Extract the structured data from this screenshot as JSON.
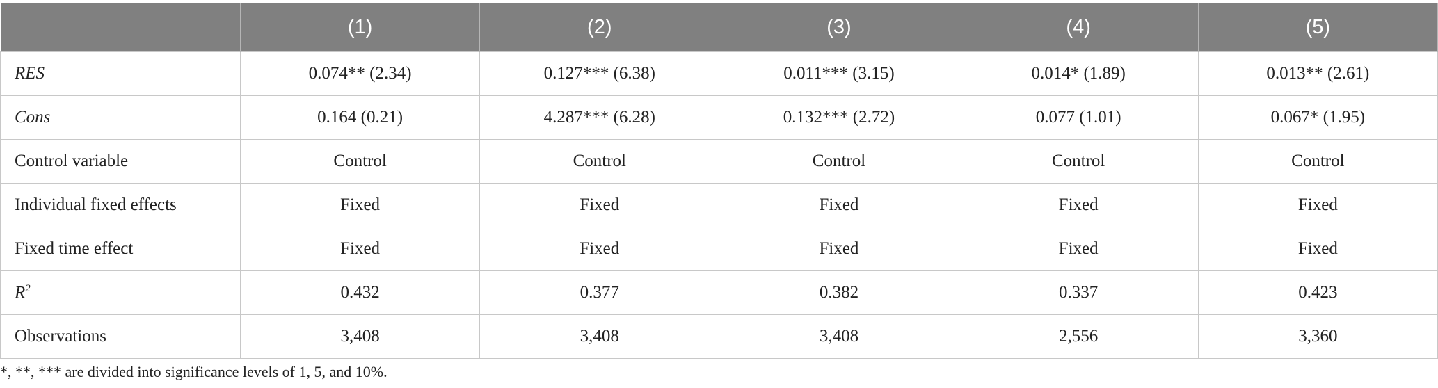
{
  "table": {
    "columns": [
      "(1)",
      "(2)",
      "(3)",
      "(4)",
      "(5)"
    ],
    "rows": [
      {
        "label": "RES",
        "cells": [
          "0.074** (2.34)",
          "0.127*** (6.38)",
          "0.011*** (3.15)",
          "0.014* (1.89)",
          "0.013** (2.61)"
        ]
      },
      {
        "label": "Cons",
        "cells": [
          "0.164 (0.21)",
          "4.287*** (6.28)",
          "0.132*** (2.72)",
          "0.077 (1.01)",
          "0.067* (1.95)"
        ]
      },
      {
        "label": "Control variable",
        "cells": [
          "Control",
          "Control",
          "Control",
          "Control",
          "Control"
        ]
      },
      {
        "label": "Individual fixed effects",
        "cells": [
          "Fixed",
          "Fixed",
          "Fixed",
          "Fixed",
          "Fixed"
        ]
      },
      {
        "label": "Fixed time effect",
        "cells": [
          "Fixed",
          "Fixed",
          "Fixed",
          "Fixed",
          "Fixed"
        ]
      },
      {
        "label": "R",
        "sup": "2",
        "cells": [
          "0.432",
          "0.377",
          "0.382",
          "0.337",
          "0.423"
        ]
      },
      {
        "label": "Observations",
        "cells": [
          "3,408",
          "3,408",
          "3,408",
          "2,556",
          "3,360"
        ]
      }
    ],
    "footnote": "*, **, *** are divided into significance levels of 1, 5, and 10%."
  }
}
